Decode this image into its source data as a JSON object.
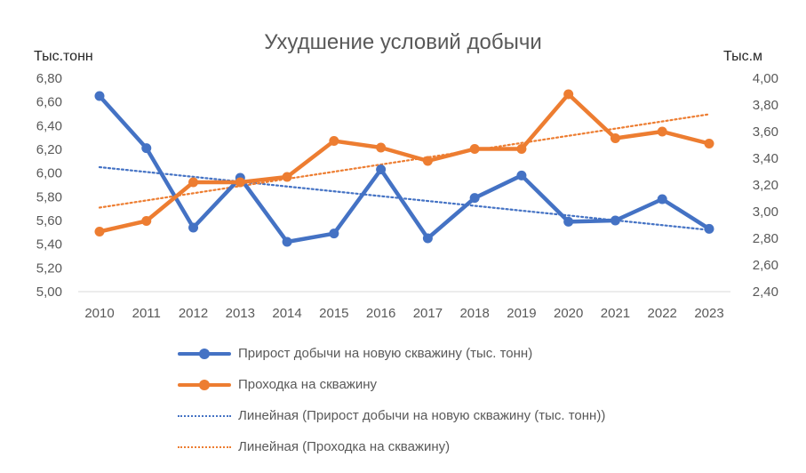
{
  "chart_data": {
    "type": "line",
    "title": "Ухудшение условий добычи",
    "y_left_label": "Тыс.тонн",
    "y_right_label": "Тыс.м",
    "categories": [
      "2010",
      "2011",
      "2012",
      "2013",
      "2014",
      "2015",
      "2016",
      "2017",
      "2018",
      "2019",
      "2020",
      "2021",
      "2022",
      "2023"
    ],
    "y_left": {
      "min": 5.0,
      "max": 6.8,
      "step": 0.2,
      "tick_labels": [
        "5,00",
        "5,20",
        "5,40",
        "5,60",
        "5,80",
        "6,00",
        "6,20",
        "6,40",
        "6,60",
        "6,80"
      ]
    },
    "y_right": {
      "min": 2.4,
      "max": 4.0,
      "step": 0.2,
      "tick_labels": [
        "2,40",
        "2,60",
        "2,80",
        "3,00",
        "3,20",
        "3,40",
        "3,60",
        "3,80",
        "4,00"
      ]
    },
    "series": [
      {
        "name": "Прирост добычи на новую скважину (тыс. тонн)",
        "axis": "left",
        "color": "#4472C4",
        "style": "solid-marker",
        "values": [
          6.65,
          6.21,
          5.54,
          5.96,
          5.42,
          5.49,
          6.03,
          5.45,
          5.79,
          5.98,
          5.59,
          5.6,
          5.78,
          5.53
        ]
      },
      {
        "name": "Проходка на скважину",
        "axis": "right",
        "color": "#ED7D31",
        "style": "solid-marker",
        "values": [
          2.85,
          2.93,
          3.22,
          3.22,
          3.26,
          3.53,
          3.48,
          3.38,
          3.47,
          3.47,
          3.88,
          3.55,
          3.6,
          3.51
        ]
      }
    ],
    "trendlines": [
      {
        "name": "Линейная (Прирост добычи на новую скважину (тыс. тонн))",
        "axis": "left",
        "color": "#4472C4",
        "style": "dotted",
        "start": 6.05,
        "end": 5.52
      },
      {
        "name": "Линейная (Проходка на скважину)",
        "axis": "right",
        "color": "#ED7D31",
        "style": "dotted",
        "start": 3.03,
        "end": 3.73
      }
    ],
    "grid": false,
    "legend_position": "bottom"
  }
}
